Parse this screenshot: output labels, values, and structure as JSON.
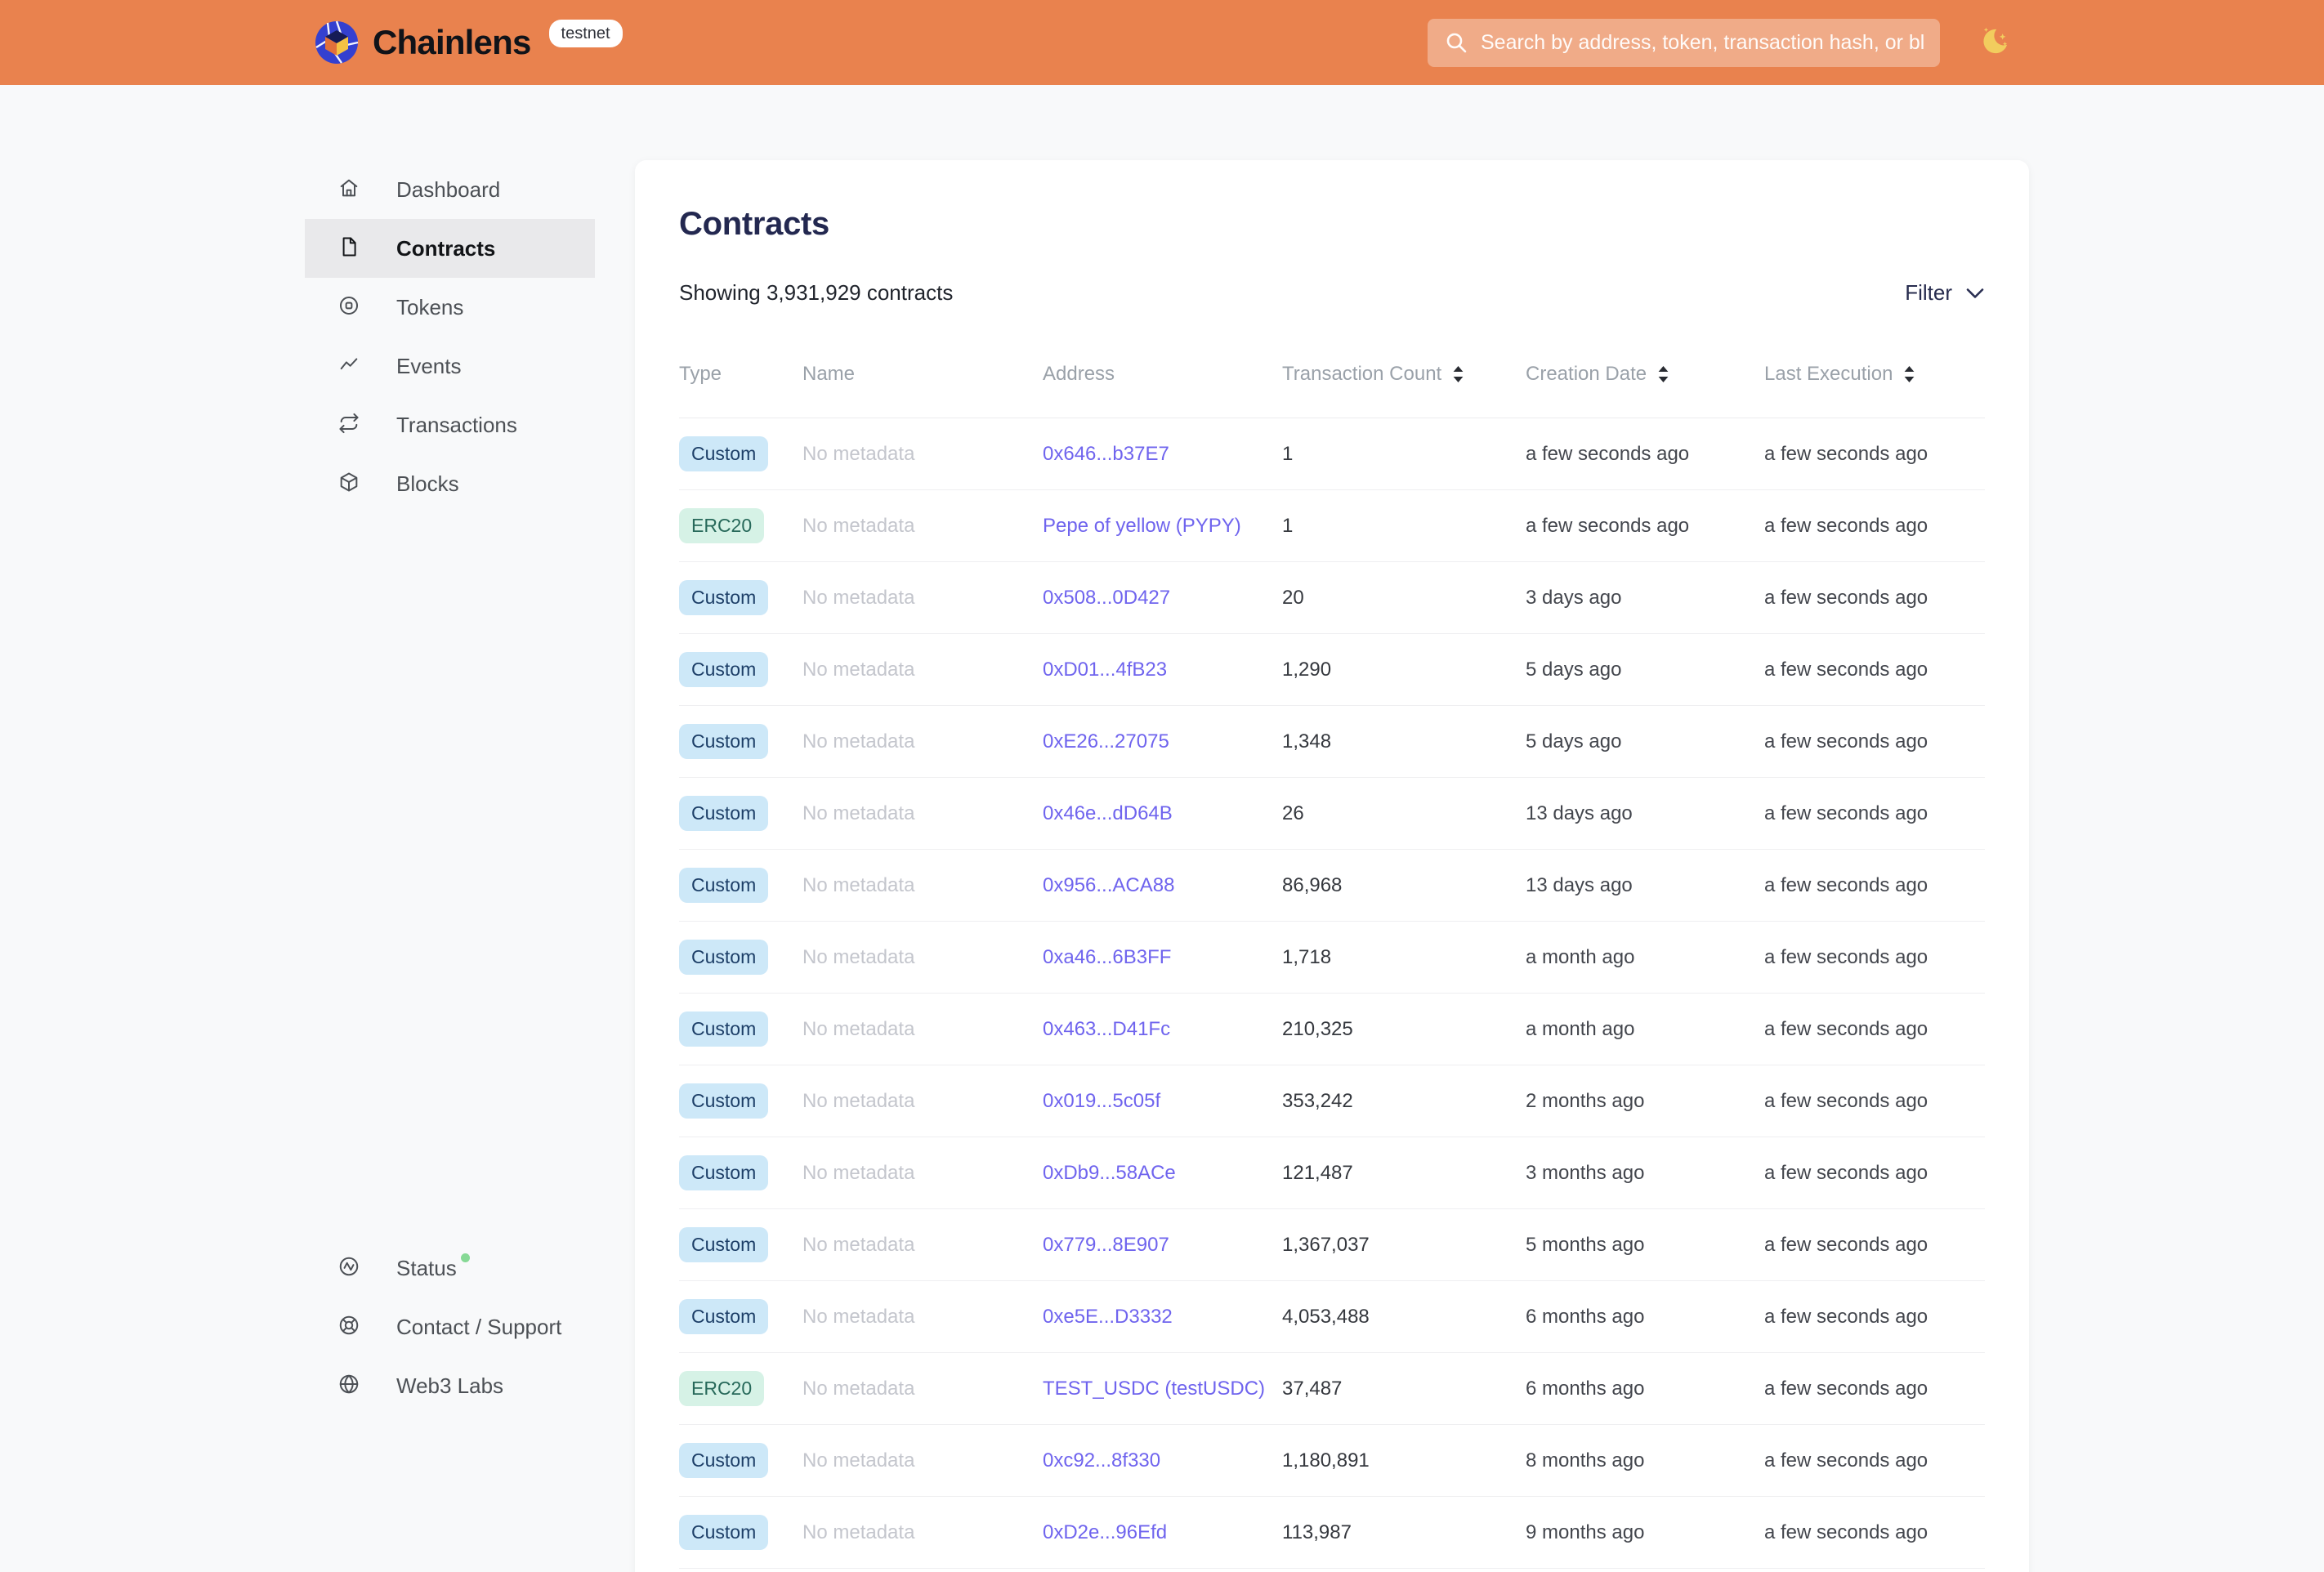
{
  "header": {
    "brand": "Chainlens",
    "env_badge": "testnet",
    "search_placeholder": "Search by address, token, transaction hash, or block number"
  },
  "sidebar": {
    "items": [
      {
        "label": "Dashboard",
        "icon": "home",
        "active": false
      },
      {
        "label": "Contracts",
        "icon": "document",
        "active": true
      },
      {
        "label": "Tokens",
        "icon": "token",
        "active": false
      },
      {
        "label": "Events",
        "icon": "activity",
        "active": false
      },
      {
        "label": "Transactions",
        "icon": "repeat",
        "active": false
      },
      {
        "label": "Blocks",
        "icon": "cube",
        "active": false
      }
    ],
    "footer_items": [
      {
        "label": "Status",
        "icon": "pulse-circle",
        "status_dot": true
      },
      {
        "label": "Contact / Support",
        "icon": "life-buoy",
        "status_dot": false
      },
      {
        "label": "Web3 Labs",
        "icon": "globe",
        "status_dot": false
      }
    ]
  },
  "main": {
    "title": "Contracts",
    "summary": "Showing 3,931,929 contracts",
    "filter_label": "Filter",
    "table": {
      "columns": [
        {
          "label": "Type",
          "sortable": false
        },
        {
          "label": "Name",
          "sortable": false
        },
        {
          "label": "Address",
          "sortable": false
        },
        {
          "label": "Transaction Count",
          "sortable": true
        },
        {
          "label": "Creation Date",
          "sortable": true
        },
        {
          "label": "Last Execution",
          "sortable": true
        }
      ],
      "rows": [
        {
          "type": "Custom",
          "name": "No metadata",
          "address": "0x646...b37E7",
          "tx_count": "1",
          "creation_date": "a few seconds ago",
          "last_execution": "a few seconds ago"
        },
        {
          "type": "ERC20",
          "name": "No metadata",
          "address": "Pepe of yellow (PYPY)",
          "tx_count": "1",
          "creation_date": "a few seconds ago",
          "last_execution": "a few seconds ago"
        },
        {
          "type": "Custom",
          "name": "No metadata",
          "address": "0x508...0D427",
          "tx_count": "20",
          "creation_date": "3 days ago",
          "last_execution": "a few seconds ago"
        },
        {
          "type": "Custom",
          "name": "No metadata",
          "address": "0xD01...4fB23",
          "tx_count": "1,290",
          "creation_date": "5 days ago",
          "last_execution": "a few seconds ago"
        },
        {
          "type": "Custom",
          "name": "No metadata",
          "address": "0xE26...27075",
          "tx_count": "1,348",
          "creation_date": "5 days ago",
          "last_execution": "a few seconds ago"
        },
        {
          "type": "Custom",
          "name": "No metadata",
          "address": "0x46e...dD64B",
          "tx_count": "26",
          "creation_date": "13 days ago",
          "last_execution": "a few seconds ago"
        },
        {
          "type": "Custom",
          "name": "No metadata",
          "address": "0x956...ACA88",
          "tx_count": "86,968",
          "creation_date": "13 days ago",
          "last_execution": "a few seconds ago"
        },
        {
          "type": "Custom",
          "name": "No metadata",
          "address": "0xa46...6B3FF",
          "tx_count": "1,718",
          "creation_date": "a month ago",
          "last_execution": "a few seconds ago"
        },
        {
          "type": "Custom",
          "name": "No metadata",
          "address": "0x463...D41Fc",
          "tx_count": "210,325",
          "creation_date": "a month ago",
          "last_execution": "a few seconds ago"
        },
        {
          "type": "Custom",
          "name": "No metadata",
          "address": "0x019...5c05f",
          "tx_count": "353,242",
          "creation_date": "2 months ago",
          "last_execution": "a few seconds ago"
        },
        {
          "type": "Custom",
          "name": "No metadata",
          "address": "0xDb9...58ACe",
          "tx_count": "121,487",
          "creation_date": "3 months ago",
          "last_execution": "a few seconds ago"
        },
        {
          "type": "Custom",
          "name": "No metadata",
          "address": "0x779...8E907",
          "tx_count": "1,367,037",
          "creation_date": "5 months ago",
          "last_execution": "a few seconds ago"
        },
        {
          "type": "Custom",
          "name": "No metadata",
          "address": "0xe5E...D3332",
          "tx_count": "4,053,488",
          "creation_date": "6 months ago",
          "last_execution": "a few seconds ago"
        },
        {
          "type": "ERC20",
          "name": "No metadata",
          "address": "TEST_USDC (testUSDC)",
          "tx_count": "37,487",
          "creation_date": "6 months ago",
          "last_execution": "a few seconds ago"
        },
        {
          "type": "Custom",
          "name": "No metadata",
          "address": "0xc92...8f330",
          "tx_count": "1,180,891",
          "creation_date": "8 months ago",
          "last_execution": "a few seconds ago"
        },
        {
          "type": "Custom",
          "name": "No metadata",
          "address": "0xD2e...96Efd",
          "tx_count": "113,987",
          "creation_date": "9 months ago",
          "last_execution": "a few seconds ago"
        }
      ]
    }
  },
  "colors": {
    "header_bg": "#e9824e",
    "page_bg": "#f8f9fa",
    "brand_text": "#101319",
    "title_color": "#232850",
    "link_color": "#6f64ee",
    "sidebar_active_bg": "#e9e9eb",
    "badge_custom_bg": "#cde8f8",
    "badge_custom_text": "#1c3e67",
    "badge_erc20_bg": "#d6f2e6",
    "badge_erc20_text": "#27695a",
    "status_dot": "#86d995",
    "moon": "#f2cd5e"
  }
}
